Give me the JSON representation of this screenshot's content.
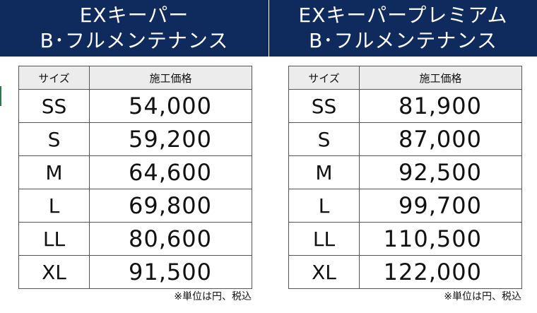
{
  "colors": {
    "header_bg": "#0f2a5c",
    "header_text": "#ffffff",
    "table_border": "#555555",
    "table_header_bg": "#ececec"
  },
  "left": {
    "title_line1": "EXキーパー",
    "title_line2": "B･フルメンテナンス",
    "col_size": "サイズ",
    "col_price": "施工価格",
    "rows": [
      {
        "size": "SS",
        "price": "54,000"
      },
      {
        "size": "S",
        "price": "59,200"
      },
      {
        "size": "M",
        "price": "64,600"
      },
      {
        "size": "L",
        "price": "69,800"
      },
      {
        "size": "LL",
        "price": "80,600"
      },
      {
        "size": "XL",
        "price": "91,500"
      }
    ],
    "note": "※単位は円、税込"
  },
  "right": {
    "title_line1": "EXキーパープレミアム",
    "title_line2": "B･フルメンテナンス",
    "col_size": "サイズ",
    "col_price": "施工価格",
    "rows": [
      {
        "size": "SS",
        "price": "81,900"
      },
      {
        "size": "S",
        "price": "87,000"
      },
      {
        "size": "M",
        "price": "92,500"
      },
      {
        "size": "L",
        "price": "99,700"
      },
      {
        "size": "LL",
        "price": "110,500"
      },
      {
        "size": "XL",
        "price": "122,000"
      }
    ],
    "note": "※単位は円、税込"
  }
}
